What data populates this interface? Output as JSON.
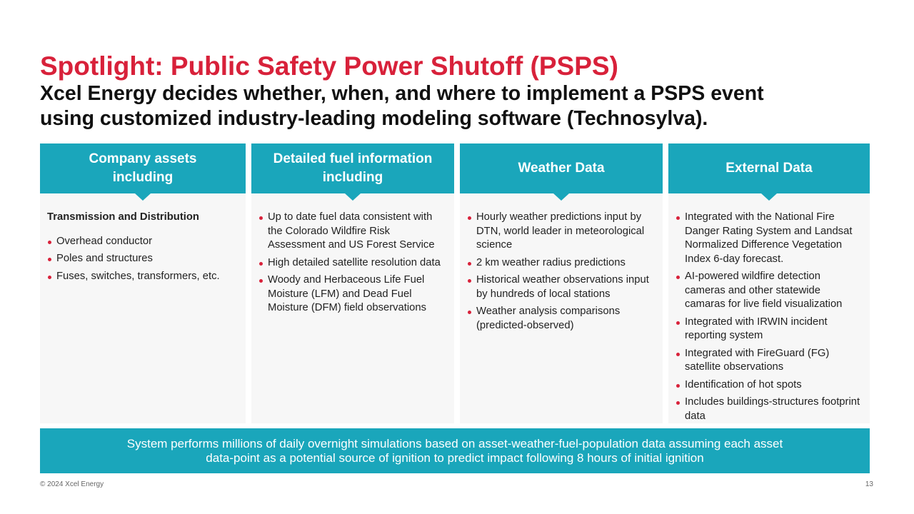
{
  "title": "Spotlight: Public Safety Power Shutoff (PSPS)",
  "subtitle_lines": [
    "Xcel Energy decides whether, when, and where to implement a PSPS event",
    "using customized industry-leading modeling software (Technosylva)."
  ],
  "columns": [
    {
      "heading": "Company assets including",
      "subheading": "Transmission and Distribution",
      "bullets": [
        "Overhead conductor",
        "Poles and structures",
        "Fuses, switches, transformers, etc."
      ]
    },
    {
      "heading": "Detailed fuel information including",
      "bullets": [
        "Up to date fuel data consistent with the Colorado Wildfire Risk Assessment and US Forest Service",
        "High detailed satellite resolution data",
        "Woody and Herbaceous Life Fuel Moisture (LFM) and Dead Fuel Moisture (DFM) field observations"
      ]
    },
    {
      "heading": "Weather Data",
      "bullets": [
        "Hourly weather predictions input by DTN, world leader in meteorological science",
        "2 km weather radius predictions",
        "Historical weather observations input by hundreds of local stations",
        "Weather analysis comparisons (predicted-observed)"
      ]
    },
    {
      "heading": "External Data",
      "bullets": [
        "Integrated with the National Fire Danger Rating System and Landsat Normalized Difference Vegetation Index 6-day forecast.",
        "AI-powered wildfire detection cameras and other statewide camaras for live field visualization",
        "Integrated with IRWIN incident reporting system",
        "Integrated with FireGuard (FG) satellite observations",
        "Identification of hot spots",
        "Includes buildings-structures footprint data"
      ]
    }
  ],
  "footer_bar": "System performs millions of daily overnight simulations based on asset-weather-fuel-population data assuming each asset data-point as a potential source of ignition to predict impact following 8 hours of initial ignition",
  "copyright": "© 2024 Xcel Energy",
  "page_number": "13"
}
